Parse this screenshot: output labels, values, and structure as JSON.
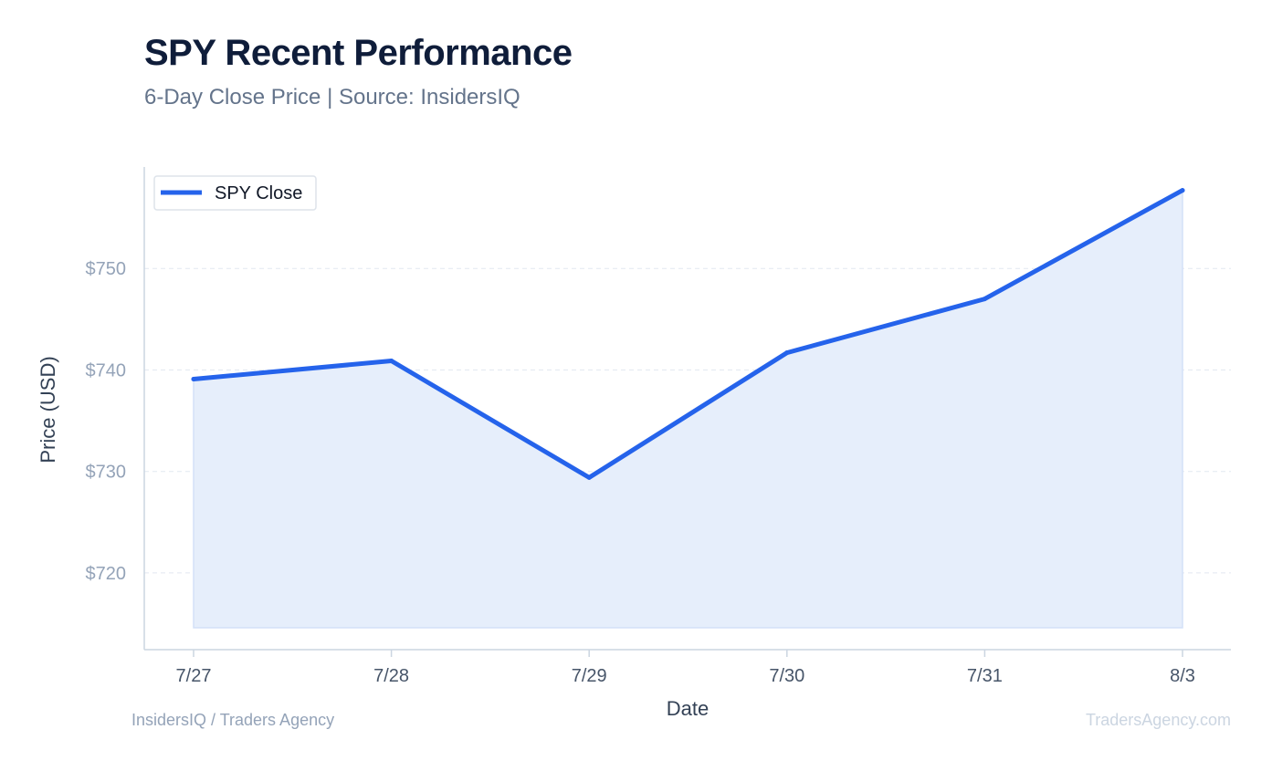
{
  "header": {
    "title": "SPY Recent Performance",
    "subtitle": "6-Day Close Price | Source: InsidersIQ"
  },
  "footer": {
    "left": "InsidersIQ / Traders Agency",
    "right": "TradersAgency.com"
  },
  "colors": {
    "line": "#2563eb",
    "fill": "#e6eefb",
    "grid": "#e2e8f0",
    "axis": "#cbd5e1",
    "tick_text": "#94a3b8",
    "category_text": "#475569",
    "axis_label": "#334155"
  },
  "chart_data": {
    "type": "area",
    "categories": [
      "7/27",
      "7/28",
      "7/29",
      "7/30",
      "7/31",
      "8/3"
    ],
    "series": [
      {
        "name": "SPY Close",
        "values": [
          739.1,
          740.9,
          729.4,
          741.7,
          747.0,
          757.7
        ]
      }
    ],
    "xlabel": "Date",
    "ylabel": "Price (USD)",
    "ylim": [
      714.6,
      760
    ],
    "yticks": [
      720,
      730,
      740,
      750
    ],
    "ytick_labels": [
      "$720",
      "$730",
      "$740",
      "$750"
    ],
    "grid": true,
    "legend": "top-left"
  }
}
